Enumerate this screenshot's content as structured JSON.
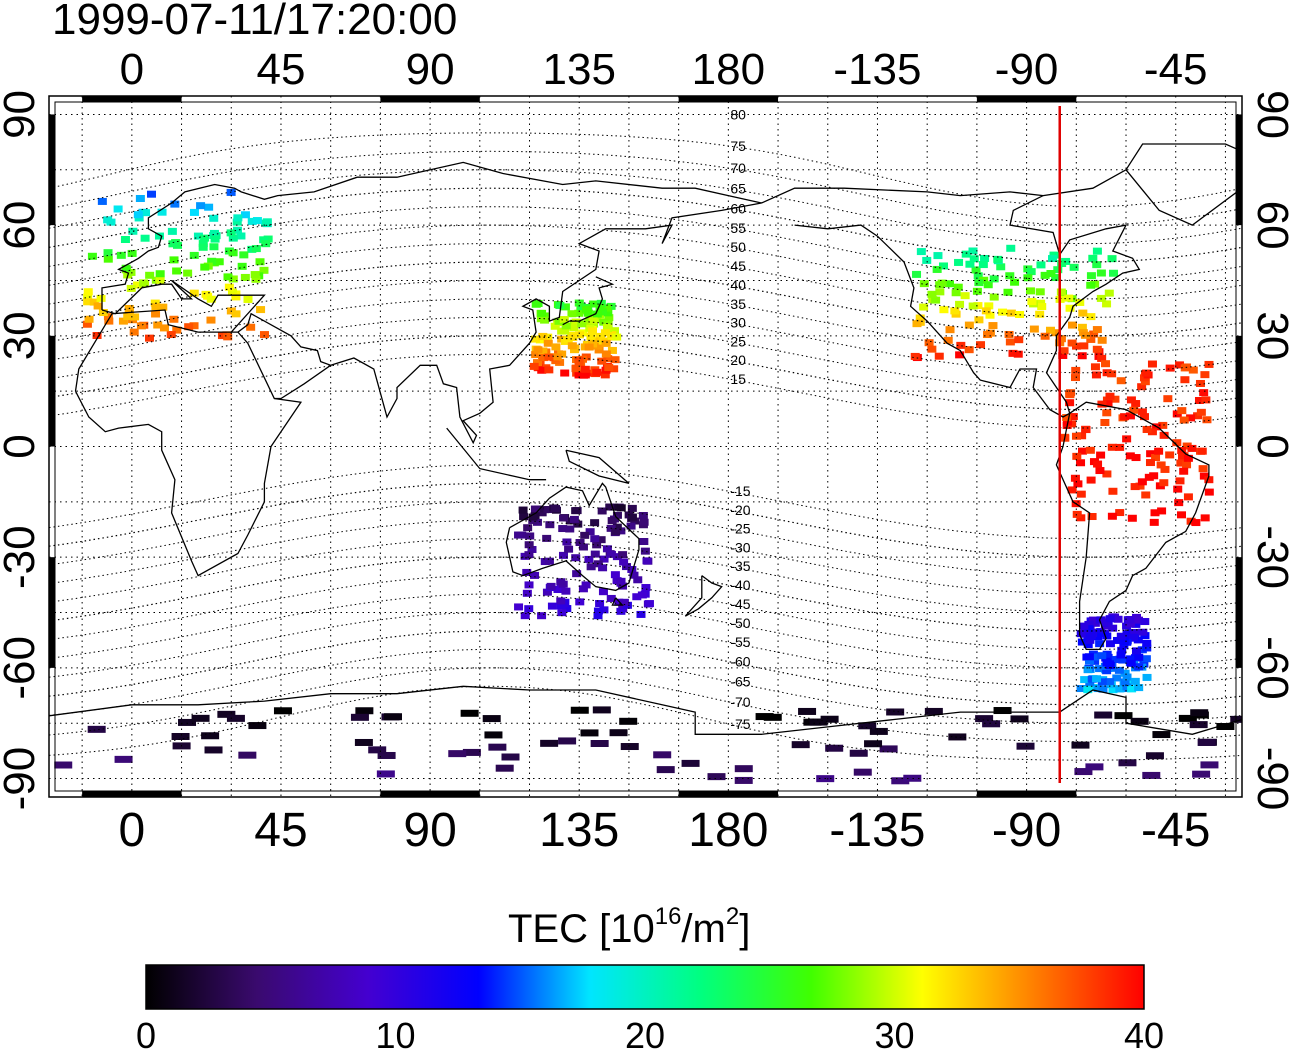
{
  "title": "1999-07-11/17:20:00",
  "map": {
    "projection": "equirectangular",
    "lon_range": [
      -25,
      335
    ],
    "lat_range": [
      -95,
      95
    ],
    "top_lon_ticks": [
      "0",
      "45",
      "90",
      "135",
      "180",
      "-135",
      "-90",
      "-45"
    ],
    "bottom_lon_ticks": [
      "0",
      "45",
      "90",
      "135",
      "180",
      "-135",
      "-90",
      "-45"
    ],
    "left_lat_ticks": [
      "90",
      "60",
      "30",
      "0",
      "-30",
      "-60",
      "-90"
    ],
    "right_lat_ticks": [
      "90",
      "60",
      "30",
      "0",
      "-30",
      "-60",
      "-90"
    ],
    "lon_tick_values": [
      0,
      45,
      90,
      135,
      180,
      225,
      270,
      315
    ],
    "lat_tick_values": [
      90,
      60,
      30,
      0,
      -30,
      -60,
      -90
    ],
    "grid": "dotted, 15 degree spacing",
    "magnetic_latitude_labels": [
      "80",
      "75",
      "70",
      "65",
      "60",
      "55",
      "50",
      "45",
      "40",
      "35",
      "30",
      "25",
      "20",
      "15",
      "-15",
      "-20",
      "-25",
      "-30",
      "-35",
      "-40",
      "-45",
      "-50",
      "-55",
      "-60",
      "-65",
      "-70",
      "-75"
    ],
    "magnetic_latitude_values": [
      80,
      75,
      70,
      65,
      60,
      55,
      50,
      45,
      40,
      35,
      30,
      25,
      20,
      15,
      -15,
      -20,
      -25,
      -30,
      -35,
      -40,
      -45,
      -50,
      -55,
      -60,
      -65,
      -70,
      -75
    ],
    "terminator_line": {
      "longitude": -80,
      "color": "#e00000"
    }
  },
  "colorbar": {
    "label_main": "TEC  [10",
    "label_sup1": "16",
    "label_mid": "/m",
    "label_sup2": "2",
    "label_end": "]",
    "min": 0,
    "max": 40,
    "tick_labels": [
      "0",
      "10",
      "20",
      "30",
      "40"
    ],
    "tick_values": [
      0,
      10,
      20,
      30,
      40
    ],
    "colormap": [
      "#000000",
      "#3a0a6e",
      "#4400d0",
      "#0000ff",
      "#00e5ff",
      "#00ff80",
      "#40ff00",
      "#ffff00",
      "#ff8000",
      "#ff0000"
    ]
  },
  "tec_regions": [
    {
      "region": "europe",
      "lon": [
        -15,
        40
      ],
      "lat": [
        30,
        70
      ],
      "value_range": [
        15,
        38
      ]
    },
    {
      "region": "north-america",
      "lon": [
        -125,
        -65
      ],
      "lat": [
        25,
        55
      ],
      "value_range": [
        20,
        40
      ]
    },
    {
      "region": "south-america",
      "lon": [
        -80,
        -35
      ],
      "lat": [
        -20,
        25
      ],
      "value_range": [
        38,
        40
      ]
    },
    {
      "region": "patagonia",
      "lon": [
        -75,
        -55
      ],
      "lat": [
        -65,
        -45
      ],
      "value_range": [
        10,
        17
      ]
    },
    {
      "region": "east-asia",
      "lon": [
        120,
        145
      ],
      "lat": [
        20,
        40
      ],
      "value_range": [
        25,
        40
      ]
    },
    {
      "region": "australia",
      "lon": [
        115,
        155
      ],
      "lat": [
        -45,
        -15
      ],
      "value_range": [
        3,
        10
      ]
    },
    {
      "region": "antarctica",
      "lon": [
        -25,
        335
      ],
      "lat": [
        -90,
        -70
      ],
      "value_range": [
        0,
        5
      ]
    }
  ]
}
